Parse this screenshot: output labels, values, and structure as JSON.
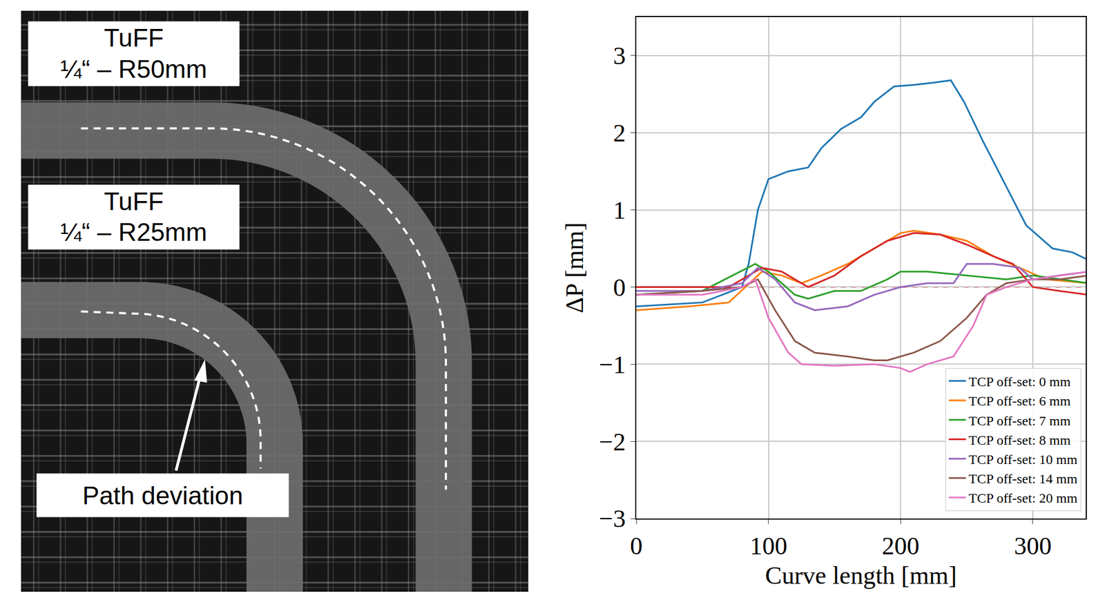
{
  "image_panel": {
    "labels": [
      {
        "lines": [
          "TuFF",
          "¼“ – R50mm"
        ]
      },
      {
        "lines": [
          "TuFF",
          "¼“ – R25mm"
        ]
      }
    ],
    "callout": "Path deviation"
  },
  "chart_data": {
    "type": "line",
    "x_label": "Curve length [mm]",
    "y_label": "ΔP [mm]",
    "xlim": [
      0,
      340
    ],
    "ylim": [
      -3,
      3.5
    ],
    "xticks": [
      0,
      100,
      200,
      300
    ],
    "yticks": [
      -3,
      -2,
      -1,
      0,
      1,
      2,
      3
    ],
    "grid": true,
    "legend": "lower right",
    "hlines": [
      {
        "y": 0,
        "color": "#d62728",
        "line_style": "dash"
      }
    ],
    "series": [
      {
        "name": "TCP off-set: 0 mm",
        "color": "#1f77b4",
        "x": [
          0,
          50,
          80,
          85,
          92,
          100,
          115,
          130,
          140,
          155,
          170,
          180,
          195,
          210,
          225,
          238,
          248,
          262,
          280,
          295,
          315,
          330,
          342
        ],
        "values": [
          -0.25,
          -0.2,
          0,
          0.3,
          1.0,
          1.4,
          1.5,
          1.55,
          1.8,
          2.05,
          2.2,
          2.4,
          2.6,
          2.62,
          2.65,
          2.68,
          2.4,
          1.9,
          1.3,
          0.8,
          0.5,
          0.45,
          0.35
        ]
      },
      {
        "name": "TCP off-set: 6 mm",
        "color": "#ff7f0e",
        "x": [
          0,
          40,
          70,
          95,
          110,
          125,
          140,
          160,
          180,
          200,
          210,
          230,
          250,
          270,
          290,
          310,
          342
        ],
        "values": [
          -0.3,
          -0.25,
          -0.2,
          0.2,
          0.15,
          0.05,
          0.15,
          0.3,
          0.5,
          0.7,
          0.73,
          0.68,
          0.6,
          0.4,
          0.25,
          0.1,
          0.05
        ]
      },
      {
        "name": "TCP off-set: 7 mm",
        "color": "#2ca02c",
        "x": [
          0,
          50,
          90,
          100,
          120,
          130,
          150,
          170,
          190,
          200,
          220,
          250,
          280,
          300,
          342
        ],
        "values": [
          -0.1,
          -0.05,
          0.3,
          0.2,
          -0.1,
          -0.15,
          -0.05,
          -0.05,
          0.1,
          0.2,
          0.2,
          0.15,
          0.1,
          0.15,
          0.05
        ]
      },
      {
        "name": "TCP off-set: 8 mm",
        "color": "#d62728",
        "x": [
          0,
          40,
          70,
          95,
          110,
          130,
          150,
          170,
          190,
          210,
          230,
          250,
          270,
          285,
          300,
          320,
          342
        ],
        "values": [
          0,
          0,
          0,
          0.25,
          0.2,
          0,
          0.15,
          0.4,
          0.6,
          0.7,
          0.68,
          0.55,
          0.4,
          0.3,
          0,
          -0.05,
          -0.1
        ]
      },
      {
        "name": "TCP off-set: 10 mm",
        "color": "#9467bd",
        "x": [
          0,
          50,
          80,
          92,
          105,
          120,
          135,
          160,
          180,
          200,
          220,
          240,
          250,
          270,
          290,
          300,
          320,
          342
        ],
        "values": [
          -0.05,
          -0.05,
          0.05,
          0.25,
          0.1,
          -0.2,
          -0.3,
          -0.25,
          -0.1,
          0,
          0.05,
          0.05,
          0.3,
          0.3,
          0.25,
          0.1,
          0.15,
          0.2
        ]
      },
      {
        "name": "TCP off-set: 14 mm",
        "color": "#8c564b",
        "x": [
          0,
          50,
          80,
          92,
          105,
          120,
          135,
          160,
          180,
          190,
          210,
          230,
          250,
          265,
          280,
          300,
          320,
          342
        ],
        "values": [
          -0.1,
          -0.05,
          0,
          0.1,
          -0.3,
          -0.7,
          -0.85,
          -0.9,
          -0.95,
          -0.95,
          -0.85,
          -0.7,
          -0.4,
          -0.1,
          0.05,
          0.1,
          0.1,
          0.15
        ]
      },
      {
        "name": "TCP off-set: 20 mm",
        "color": "#e377c2",
        "x": [
          0,
          50,
          80,
          90,
          100,
          115,
          125,
          150,
          180,
          200,
          207,
          220,
          240,
          255,
          265,
          280,
          300,
          320,
          342
        ],
        "values": [
          -0.1,
          -0.1,
          0,
          0.1,
          -0.4,
          -0.85,
          -1.0,
          -1.02,
          -1.0,
          -1.05,
          -1.1,
          -1.0,
          -0.9,
          -0.5,
          -0.1,
          0,
          0.1,
          0.15,
          0.2
        ]
      }
    ]
  }
}
